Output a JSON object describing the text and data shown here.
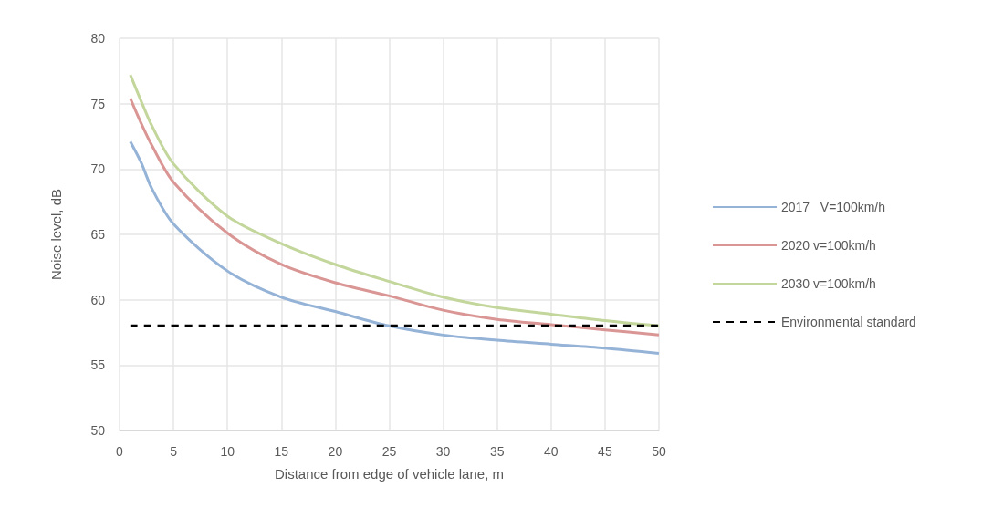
{
  "chart_data": {
    "type": "line",
    "xlabel": "Distance from edge of vehicle lane, m",
    "ylabel": "Noise level, dB",
    "x": [
      1,
      2,
      3,
      5,
      10,
      15,
      20,
      25,
      30,
      35,
      40,
      45,
      50
    ],
    "series": [
      {
        "name": "2017   V=100km/h",
        "color": "#95b3d7",
        "values": [
          72.1,
          70.5,
          68.5,
          65.8,
          62.2,
          60.2,
          59.1,
          58.0,
          57.3,
          56.9,
          56.6,
          56.3,
          55.9
        ]
      },
      {
        "name": "2020 v=100km/h",
        "color": "#d99694",
        "values": [
          75.4,
          73.5,
          71.8,
          69.0,
          65.1,
          62.7,
          61.3,
          60.3,
          59.2,
          58.5,
          58.1,
          57.7,
          57.3
        ]
      },
      {
        "name": "2030 v=100km/h",
        "color": "#c3d69b",
        "values": [
          77.2,
          75.2,
          73.3,
          70.4,
          66.4,
          64.3,
          62.7,
          61.4,
          60.2,
          59.4,
          58.9,
          58.4,
          58.0
        ]
      },
      {
        "name": "Environmental standard",
        "color": "#000000",
        "x": [
          1,
          50
        ],
        "values": [
          58,
          58
        ],
        "line_style": "dashed"
      }
    ],
    "xlim": [
      0,
      50
    ],
    "xticks": [
      0,
      5,
      10,
      15,
      20,
      25,
      30,
      35,
      40,
      45,
      50
    ],
    "ylim": [
      50,
      80
    ],
    "yticks": [
      50,
      55,
      60,
      65,
      70,
      75,
      80
    ],
    "grid": true,
    "legend": "right",
    "marker": "none",
    "line_style": "solid"
  }
}
